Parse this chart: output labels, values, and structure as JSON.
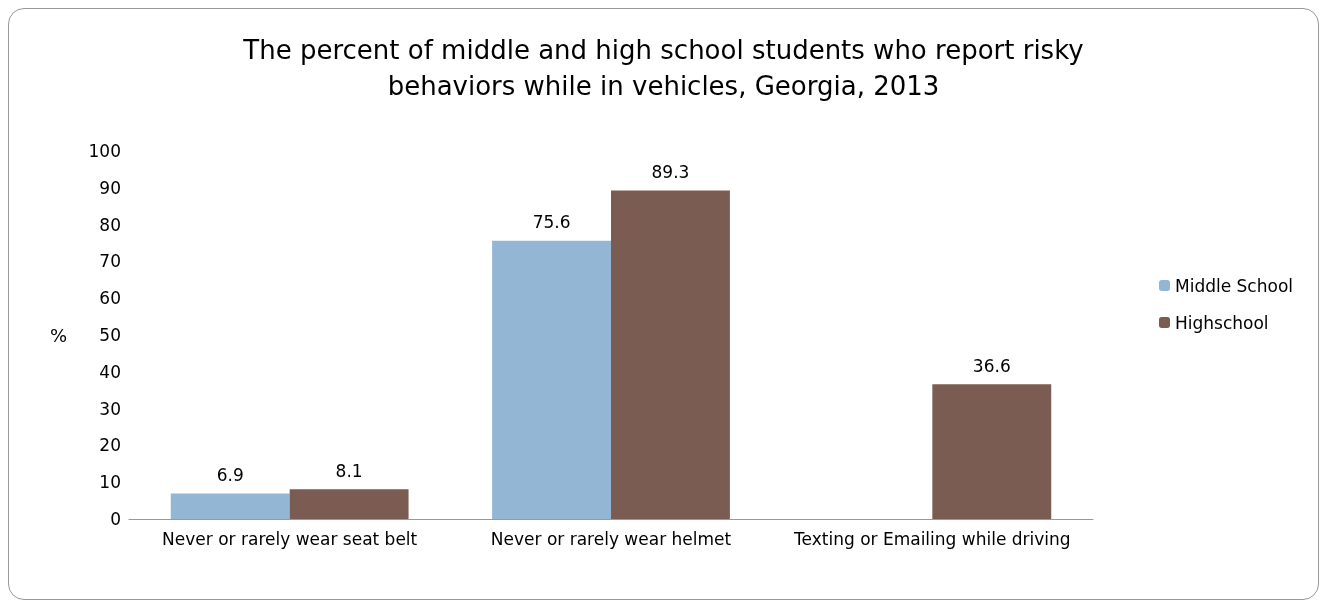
{
  "chart_data": {
    "type": "bar",
    "title": "The percent of middle and high school students who report risky\nbehaviors while in vehicles, Georgia, 2013",
    "ylabel": "%",
    "categories": [
      "Never or rarely wear seat belt",
      "Never or rarely wear helmet",
      "Texting or Emailing while driving"
    ],
    "series": [
      {
        "name": "Middle School",
        "color": "#93b6d4",
        "values": [
          6.9,
          75.6,
          null
        ]
      },
      {
        "name": "Highschool",
        "color": "#7a5c52",
        "values": [
          8.1,
          89.3,
          36.6
        ]
      }
    ],
    "ylim": [
      0,
      100
    ],
    "yticks": [
      0,
      10,
      20,
      30,
      40,
      50,
      60,
      70,
      80,
      90,
      100
    ],
    "grid": false,
    "legend": "right",
    "data_labels": true
  }
}
